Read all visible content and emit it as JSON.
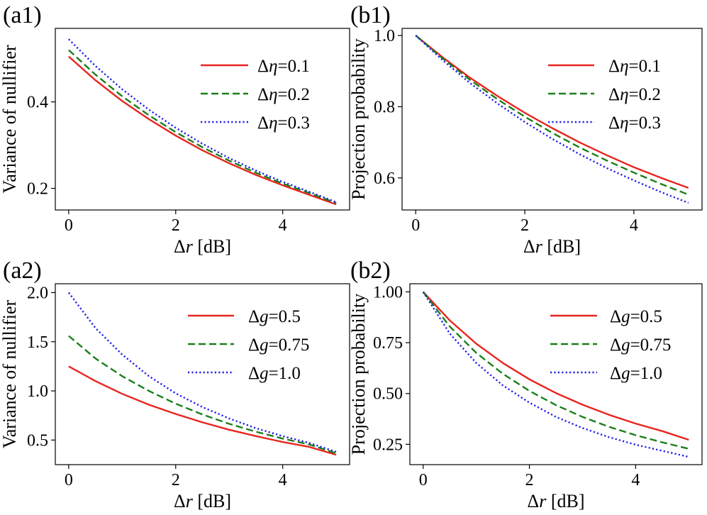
{
  "figure": {
    "description_free": true
  },
  "chart_data": [
    {
      "id": "a1",
      "type": "line",
      "panel_label": "(a1)",
      "xlabel_greek": "Δ",
      "xlabel_var": "r",
      "xlabel_unit": " [dB]",
      "ylabel": "Variance of nullifier",
      "xlim": [
        -0.25,
        5.25
      ],
      "ylim": [
        0.15,
        0.57
      ],
      "xticks": [
        0,
        2,
        4
      ],
      "xtick_labels": [
        "0",
        "2",
        "4"
      ],
      "yticks": [
        0.2,
        0.4
      ],
      "ytick_labels": [
        "0.2",
        "0.4"
      ],
      "legend_position": "top-right",
      "x": [
        0,
        0.5,
        1,
        1.5,
        2,
        2.5,
        3,
        3.5,
        4,
        4.5,
        5
      ],
      "series": [
        {
          "name_greek": "Δ",
          "name_var": "η",
          "name_value": "=0.1",
          "color": "#e8251f",
          "style": "solid",
          "values": [
            0.505,
            0.45,
            0.402,
            0.36,
            0.322,
            0.288,
            0.258,
            0.231,
            0.207,
            0.185,
            0.163
          ]
        },
        {
          "name_greek": "Δ",
          "name_var": "η",
          "name_value": "=0.2",
          "color": "#1a7f1a",
          "style": "dashed",
          "values": [
            0.52,
            0.463,
            0.413,
            0.369,
            0.33,
            0.295,
            0.264,
            0.236,
            0.211,
            0.189,
            0.166
          ]
        },
        {
          "name_greek": "Δ",
          "name_var": "η",
          "name_value": "=0.3",
          "color": "#1f1fe8",
          "style": "dotted",
          "values": [
            0.545,
            0.483,
            0.429,
            0.382,
            0.34,
            0.303,
            0.27,
            0.241,
            0.215,
            0.192,
            0.168
          ]
        }
      ]
    },
    {
      "id": "b1",
      "type": "line",
      "panel_label": "(b1)",
      "xlabel_greek": "Δ",
      "xlabel_var": "r",
      "xlabel_unit": " [dB]",
      "ylabel": "Projection probability",
      "xlim": [
        -0.25,
        5.25
      ],
      "ylim": [
        0.51,
        1.02
      ],
      "xticks": [
        0,
        2,
        4
      ],
      "xtick_labels": [
        "0",
        "2",
        "4"
      ],
      "yticks": [
        0.6,
        0.8,
        1.0
      ],
      "ytick_labels": [
        "0.6",
        "0.8",
        "1.0"
      ],
      "legend_position": "top-right",
      "x": [
        0,
        0.5,
        1,
        1.5,
        2,
        2.5,
        3,
        3.5,
        4,
        4.5,
        5
      ],
      "series": [
        {
          "name_greek": "Δ",
          "name_var": "η",
          "name_value": "=0.1",
          "color": "#e8251f",
          "style": "solid",
          "values": [
            1.0,
            0.938,
            0.881,
            0.83,
            0.783,
            0.74,
            0.7,
            0.664,
            0.63,
            0.6,
            0.572
          ]
        },
        {
          "name_greek": "Δ",
          "name_var": "η",
          "name_value": "=0.2",
          "color": "#1a7f1a",
          "style": "dashed",
          "values": [
            1.0,
            0.935,
            0.875,
            0.821,
            0.772,
            0.727,
            0.686,
            0.649,
            0.615,
            0.583,
            0.553
          ]
        },
        {
          "name_greek": "Δ",
          "name_var": "η",
          "name_value": "=0.3",
          "color": "#1f1fe8",
          "style": "dotted",
          "values": [
            1.0,
            0.93,
            0.866,
            0.809,
            0.757,
            0.71,
            0.667,
            0.628,
            0.593,
            0.56,
            0.53
          ]
        }
      ]
    },
    {
      "id": "a2",
      "type": "line",
      "panel_label": "(a2)",
      "xlabel_greek": "Δ",
      "xlabel_var": "r",
      "xlabel_unit": " [dB]",
      "ylabel": "Variance of nullifier",
      "xlim": [
        -0.25,
        5.25
      ],
      "ylim": [
        0.25,
        2.09
      ],
      "xticks": [
        0,
        2,
        4
      ],
      "xtick_labels": [
        "0",
        "2",
        "4"
      ],
      "yticks": [
        0.5,
        1.0,
        1.5,
        2.0
      ],
      "ytick_labels": [
        "0.5",
        "1.0",
        "1.5",
        "2.0"
      ],
      "legend_position": "top-right",
      "x": [
        0,
        0.5,
        1,
        1.5,
        2,
        2.5,
        3,
        3.5,
        4,
        4.5,
        5
      ],
      "series": [
        {
          "name_greek": "Δ",
          "name_var": "g",
          "name_value": "=0.5",
          "color": "#e8251f",
          "style": "solid",
          "values": [
            1.25,
            1.1,
            0.97,
            0.86,
            0.765,
            0.68,
            0.605,
            0.54,
            0.48,
            0.43,
            0.35
          ]
        },
        {
          "name_greek": "Δ",
          "name_var": "g",
          "name_value": "=0.75",
          "color": "#1a7f1a",
          "style": "dashed",
          "values": [
            1.56,
            1.33,
            1.15,
            1.0,
            0.87,
            0.76,
            0.665,
            0.585,
            0.515,
            0.455,
            0.365
          ]
        },
        {
          "name_greek": "Δ",
          "name_var": "g",
          "name_value": "=1.0",
          "color": "#1f1fe8",
          "style": "dotted",
          "values": [
            2.0,
            1.64,
            1.37,
            1.15,
            0.975,
            0.835,
            0.72,
            0.62,
            0.54,
            0.47,
            0.38
          ]
        }
      ]
    },
    {
      "id": "b2",
      "type": "line",
      "panel_label": "(b2)",
      "xlabel_greek": "Δ",
      "xlabel_var": "r",
      "xlabel_unit": " [dB]",
      "ylabel": "Projection probability",
      "xlim": [
        -0.25,
        5.25
      ],
      "ylim": [
        0.15,
        1.04
      ],
      "xticks": [
        0,
        2,
        4
      ],
      "xtick_labels": [
        "0",
        "2",
        "4"
      ],
      "yticks": [
        0.25,
        0.5,
        0.75,
        1.0
      ],
      "ytick_labels": [
        "0.25",
        "0.50",
        "0.75",
        "1.00"
      ],
      "legend_position": "top-right",
      "x": [
        0,
        0.5,
        1,
        1.5,
        2,
        2.5,
        3,
        3.5,
        4,
        4.5,
        5
      ],
      "series": [
        {
          "name_greek": "Δ",
          "name_var": "g",
          "name_value": "=0.5",
          "color": "#e8251f",
          "style": "solid",
          "values": [
            1.0,
            0.86,
            0.745,
            0.65,
            0.57,
            0.502,
            0.445,
            0.395,
            0.352,
            0.315,
            0.272
          ]
        },
        {
          "name_greek": "Δ",
          "name_var": "g",
          "name_value": "=0.75",
          "color": "#1a7f1a",
          "style": "dashed",
          "values": [
            1.0,
            0.83,
            0.7,
            0.597,
            0.513,
            0.443,
            0.385,
            0.336,
            0.295,
            0.26,
            0.228
          ]
        },
        {
          "name_greek": "Δ",
          "name_var": "g",
          "name_value": "=1.0",
          "color": "#1f1fe8",
          "style": "dotted",
          "values": [
            1.0,
            0.795,
            0.65,
            0.54,
            0.455,
            0.385,
            0.33,
            0.285,
            0.248,
            0.218,
            0.188
          ]
        }
      ]
    }
  ]
}
